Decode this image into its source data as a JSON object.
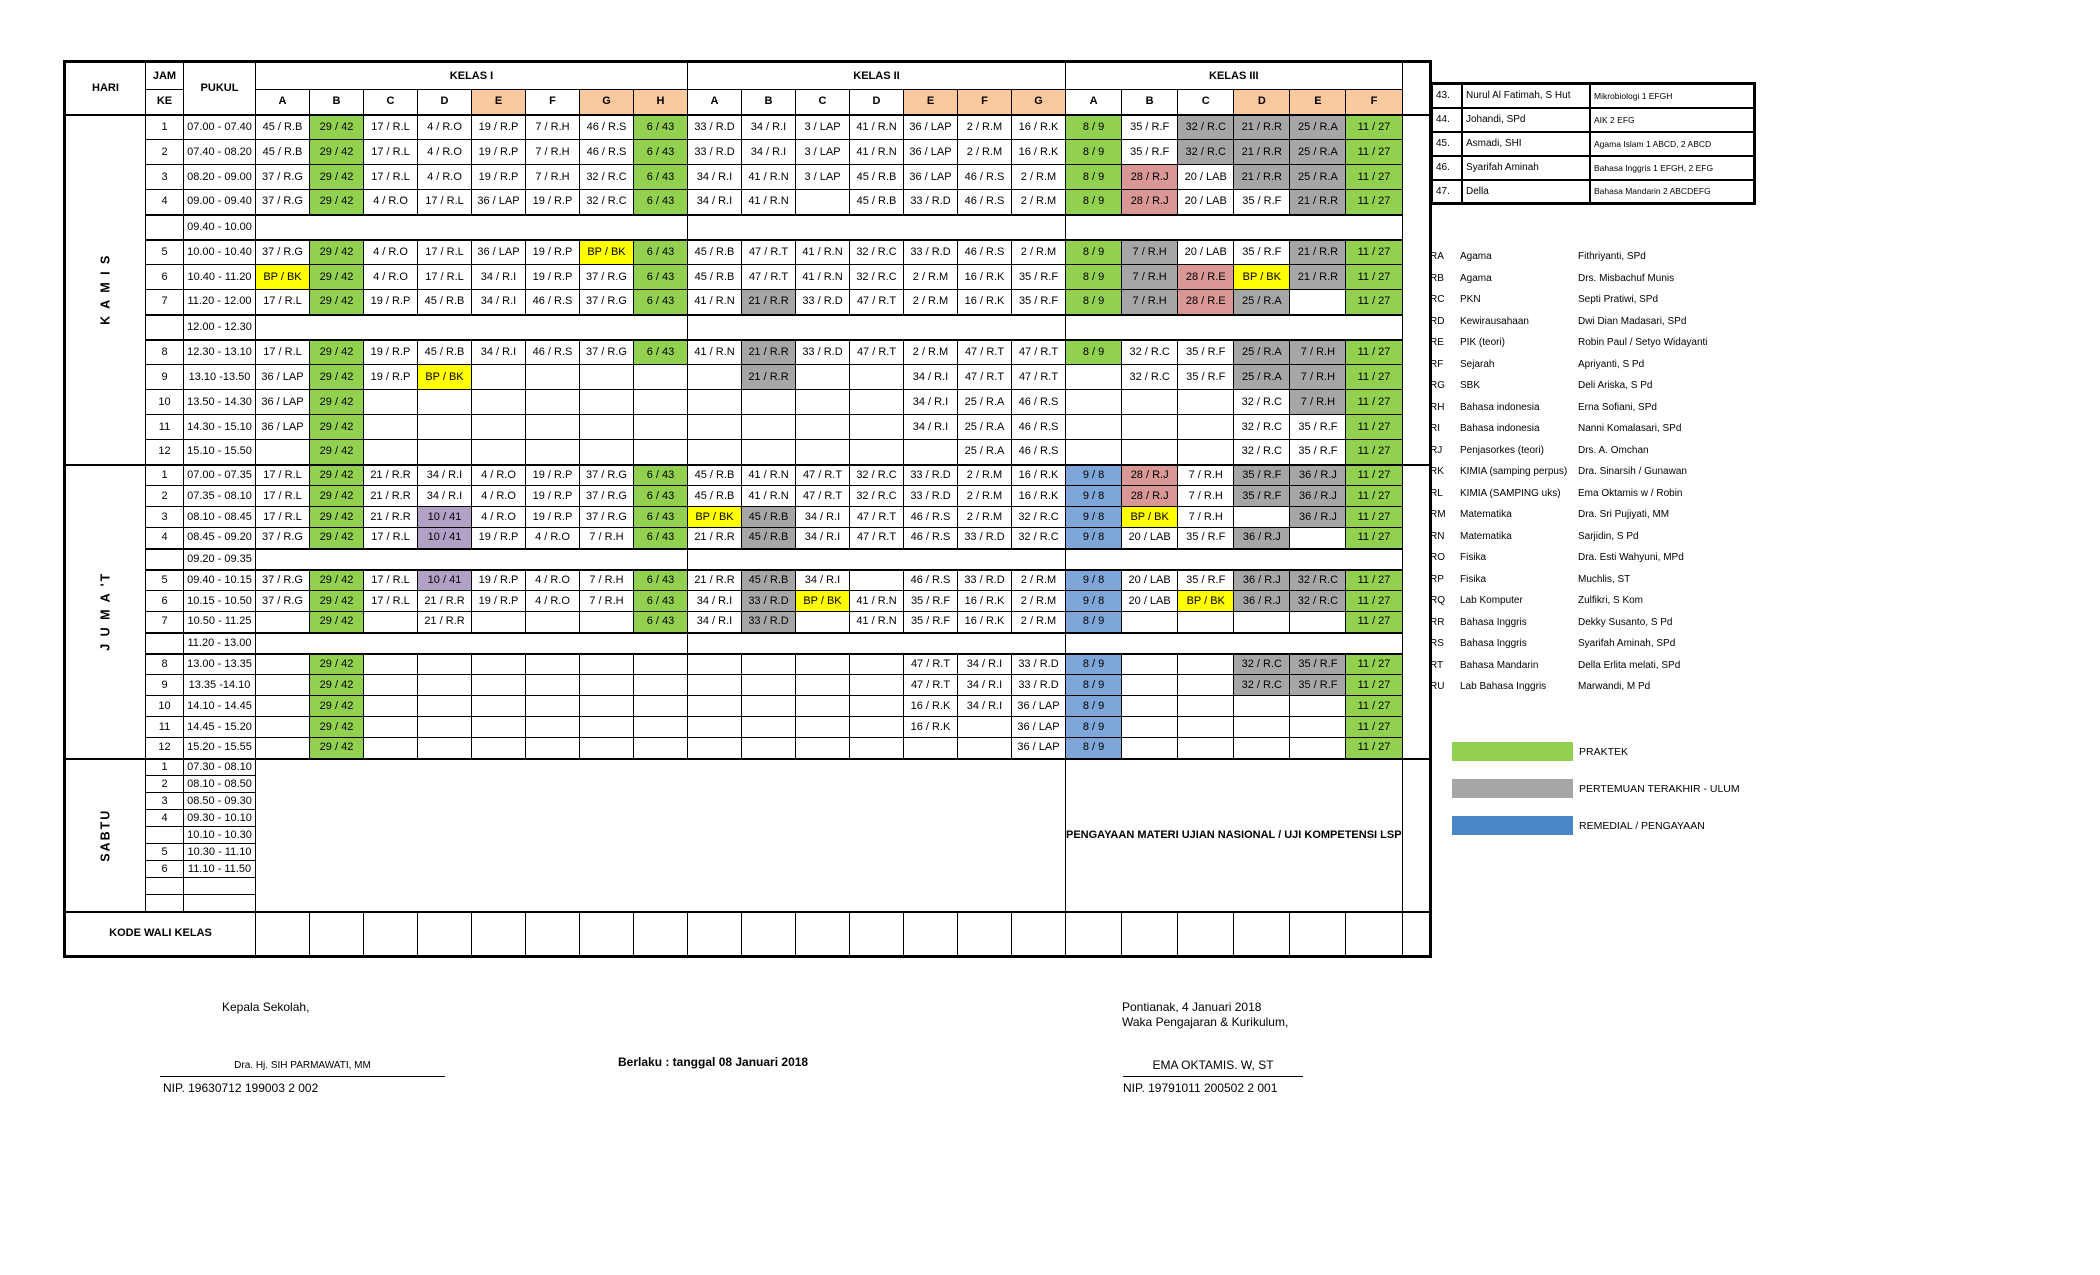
{
  "header": {
    "hari": "HARI",
    "jam": "JAM",
    "ke": "KE",
    "pukul": "PUKUL",
    "groups": [
      {
        "label": "KELAS I",
        "cols": [
          "A",
          "B",
          "C",
          "D",
          "E",
          "F",
          "G",
          "H"
        ],
        "peach": [
          4,
          6,
          7
        ]
      },
      {
        "label": "KELAS II",
        "cols": [
          "A",
          "B",
          "C",
          "D",
          "E",
          "F",
          "G"
        ],
        "peach": [
          4,
          5,
          6
        ]
      },
      {
        "label": "KELAS III",
        "cols": [
          "A",
          "B",
          "C",
          "D",
          "E",
          "F"
        ],
        "peach": [
          3,
          4,
          5
        ]
      }
    ]
  },
  "days": [
    {
      "label": "K A M I S",
      "rows": [
        [
          "1",
          "07.00 - 07.40",
          [
            "45 / R.B",
            "29 / 42|g",
            "17 / R.L",
            "4 / R.O",
            "19 / R.P",
            "7 / R.H",
            "46 / R.S",
            "6 / 43|g",
            "33 / R.D",
            "34 / R.I",
            "3 / LAP",
            "41 / R.N",
            "36 / LAP",
            "2 / R.M",
            "16 / R.K",
            "8 / 9|g",
            "35 / R.F",
            "32 / R.C|gy",
            "21 / R.R|gy",
            "25 / R.A|gy",
            "11 / 27|g"
          ]
        ],
        [
          "2",
          "07.40 - 08.20",
          [
            "45 / R.B",
            "29 / 42|g",
            "17 / R.L",
            "4 / R.O",
            "19 / R.P",
            "7 / R.H",
            "46 / R.S",
            "6 / 43|g",
            "33 / R.D",
            "34 / R.I",
            "3 / LAP",
            "41 / R.N",
            "36 / LAP",
            "2 / R.M",
            "16 / R.K",
            "8 / 9|g",
            "35 / R.F",
            "32 / R.C|gy",
            "21 / R.R|gy",
            "25 / R.A|gy",
            "11 / 27|g"
          ]
        ],
        [
          "3",
          "08.20 - 09.00",
          [
            "37 / R.G",
            "29 / 42|g",
            "17 / R.L",
            "4 / R.O",
            "19 / R.P",
            "7 / R.H",
            "32 / R.C",
            "6 / 43|g",
            "34 / R.I",
            "41 / R.N",
            "3 / LAP",
            "45 / R.B",
            "36 / LAP",
            "46 / R.S",
            "2 / R.M",
            "8 / 9|g",
            "28 / R.J|p",
            "20 / LAB",
            "21 / R.R|gy",
            "25 / R.A|gy",
            "11 / 27|g"
          ]
        ],
        [
          "4",
          "09.00 - 09.40",
          [
            "37 / R.G",
            "29 / 42|g",
            "4 / R.O",
            "17 / R.L",
            "36 / LAP",
            "19 / R.P",
            "32 / R.C",
            "6 / 43|g",
            "34 / R.I",
            "41 / R.N",
            "",
            "45 / R.B",
            "33 / R.D",
            "46 / R.S",
            "2 / R.M",
            "8 / 9|g",
            "28 / R.J|p",
            "20 / LAB",
            "35 / R.F",
            "21 / R.R|gy",
            "11 / 27|g"
          ]
        ],
        [
          "",
          "09.40 - 10.00",
          "BREAK"
        ],
        [
          "5",
          "10.00 - 10.40",
          [
            "37 / R.G",
            "29 / 42|g",
            "4 / R.O",
            "17 / R.L",
            "36 / LAP",
            "19 / R.P",
            "BP / BK|y",
            "6 / 43|g",
            "45 / R.B",
            "47 / R.T",
            "41 / R.N",
            "32 / R.C",
            "33 / R.D",
            "46 / R.S",
            "2 / R.M",
            "8 / 9|g",
            "7 / R.H|gy",
            "20 / LAB",
            "35 / R.F",
            "21 / R.R|gy",
            "11 / 27|g"
          ]
        ],
        [
          "6",
          "10.40 - 11.20",
          [
            "BP / BK|y",
            "29 / 42|g",
            "4 / R.O",
            "17 / R.L",
            "34 / R.I",
            "19 / R.P",
            "37 / R.G",
            "6 / 43|g",
            "45 / R.B",
            "47 / R.T",
            "41 / R.N",
            "32 / R.C",
            "2 / R.M",
            "16 / R.K",
            "35 / R.F",
            "8 / 9|g",
            "7 / R.H|gy",
            "28 / R.E|p",
            "BP / BK|y",
            "21 / R.R|gy",
            "11 / 27|g"
          ]
        ],
        [
          "7",
          "11.20 - 12.00",
          [
            "17 / R.L",
            "29 / 42|g",
            "19 / R.P",
            "45 / R.B",
            "34 / R.I",
            "46 / R.S",
            "37 / R.G",
            "6 / 43|g",
            "41 / R.N",
            "21 / R.R|gy",
            "33 / R.D",
            "47 / R.T",
            "2 / R.M",
            "16 / R.K",
            "35 / R.F",
            "8 / 9|g",
            "7 / R.H|gy",
            "28 / R.E|p",
            "25 / R.A|gy",
            "",
            "11 / 27|g"
          ]
        ],
        [
          "",
          "12.00 - 12.30",
          "BREAK"
        ],
        [
          "8",
          "12.30 - 13.10",
          [
            "17 / R.L",
            "29 / 42|g",
            "19 / R.P",
            "45 / R.B",
            "34 / R.I",
            "46 / R.S",
            "37 / R.G",
            "6 / 43|g",
            "41 / R.N",
            "21 / R.R|gy",
            "33 / R.D",
            "47 / R.T",
            "2 / R.M",
            "47 / R.T",
            "47 / R.T",
            "8 / 9|g",
            "32 / R.C",
            "35 / R.F",
            "25 / R.A|gy",
            "7 / R.H|gy",
            "11 / 27|g"
          ]
        ],
        [
          "9",
          "13.10 -13.50",
          [
            "36 / LAP",
            "29 / 42|g",
            "19 / R.P",
            "BP / BK|y",
            "",
            "",
            "",
            "",
            "",
            "21 / R.R|gy",
            "",
            "",
            "34 / R.I",
            "47 / R.T",
            "47 / R.T",
            "",
            "32 / R.C",
            "35 / R.F",
            "25 / R.A|gy",
            "7 / R.H|gy",
            "11 / 27|g"
          ]
        ],
        [
          "10",
          "13.50 - 14.30",
          [
            "36 / LAP",
            "29 / 42|g",
            "",
            "",
            "",
            "",
            "",
            "",
            "",
            "",
            "",
            "",
            "34 / R.I",
            "25 / R.A",
            "46 / R.S",
            "",
            "",
            "",
            "32 / R.C",
            "7 / R.H|gy",
            "11 / 27|g"
          ]
        ],
        [
          "11",
          "14.30 - 15.10",
          [
            "36 / LAP",
            "29 / 42|g",
            "",
            "",
            "",
            "",
            "",
            "",
            "",
            "",
            "",
            "",
            "34 / R.I",
            "25 / R.A",
            "46 / R.S",
            "",
            "",
            "",
            "32 / R.C",
            "35 / R.F",
            "11 / 27|g"
          ]
        ],
        [
          "12",
          "15.10 - 15.50",
          [
            "",
            "29 / 42|g",
            "",
            "",
            "",
            "",
            "",
            "",
            "",
            "",
            "",
            "",
            "",
            "25 / R.A",
            "46 / R.S",
            "",
            "",
            "",
            "32 / R.C",
            "35 / R.F",
            "11 / 27|g"
          ]
        ]
      ]
    },
    {
      "label": "J U M A 'T",
      "rows": [
        [
          "1",
          "07.00 - 07.35",
          [
            "17 / R.L",
            "29 / 42|g",
            "21 / R.R",
            "34 / R.I",
            "4 / R.O",
            "19 / R.P",
            "37 / R.G",
            "6 / 43|g",
            "45 / R.B",
            "41 / R.N",
            "47 / R.T",
            "32 / R.C",
            "33 / R.D",
            "2 / R.M",
            "16 / R.K",
            "9 / 8|b",
            "28 / R.J|p",
            "7 / R.H",
            "35 / R.F|gy",
            "36 / R.J|gy",
            "11 / 27|g"
          ]
        ],
        [
          "2",
          "07.35 - 08.10",
          [
            "17 / R.L",
            "29 / 42|g",
            "21 / R.R",
            "34 / R.I",
            "4 / R.O",
            "19 / R.P",
            "37 / R.G",
            "6 / 43|g",
            "45 / R.B",
            "41 / R.N",
            "47 / R.T",
            "32 / R.C",
            "33 / R.D",
            "2 / R.M",
            "16 / R.K",
            "9 / 8|b",
            "28 / R.J|p",
            "7 / R.H",
            "35 / R.F|gy",
            "36 / R.J|gy",
            "11 / 27|g"
          ]
        ],
        [
          "3",
          "08.10 - 08.45",
          [
            "17 / R.L",
            "29 / 42|g",
            "21 / R.R",
            "10 / 41|pu",
            "4 / R.O",
            "19 / R.P",
            "37 / R.G",
            "6 / 43|g",
            "BP / BK|y",
            "45 / R.B|gy",
            "34 / R.I",
            "47 / R.T",
            "46 / R.S",
            "2 / R.M",
            "32 / R.C",
            "9 / 8|b",
            "BP / BK|y",
            "7 / R.H",
            "",
            "36 / R.J|gy",
            "11 / 27|g"
          ]
        ],
        [
          "4",
          "08.45 - 09.20",
          [
            "37 / R.G",
            "29 / 42|g",
            "17 / R.L",
            "10 / 41|pu",
            "19 / R.P",
            "4 / R.O",
            "7 / R.H",
            "6 / 43|g",
            "21 / R.R",
            "45 / R.B|gy",
            "34 / R.I",
            "47 / R.T",
            "46 / R.S",
            "33 / R.D",
            "32 / R.C",
            "9 / 8|b",
            "20 / LAB",
            "35 / R.F",
            "36 / R.J|gy",
            "",
            "11 / 27|g"
          ]
        ],
        [
          "",
          "09.20 - 09.35",
          "BREAK"
        ],
        [
          "5",
          "09.40 - 10.15",
          [
            "37 / R.G",
            "29 / 42|g",
            "17 / R.L",
            "10 / 41|pu",
            "19 / R.P",
            "4 / R.O",
            "7 / R.H",
            "6 / 43|g",
            "21 / R.R",
            "45 / R.B|gy",
            "34 / R.I",
            "",
            "46 / R.S",
            "33 / R.D",
            "2 / R.M",
            "9 / 8|b",
            "20 / LAB",
            "35 / R.F",
            "36 / R.J|gy",
            "32 / R.C|gy",
            "11 / 27|g"
          ]
        ],
        [
          "6",
          "10.15 - 10.50",
          [
            "37 / R.G",
            "29 / 42|g",
            "17 / R.L",
            "21 / R.R",
            "19 / R.P",
            "4 / R.O",
            "7 / R.H",
            "6 / 43|g",
            "34 / R.I",
            "33 / R.D|gy",
            "BP / BK|y",
            "41 / R.N",
            "35 / R.F",
            "16 / R.K",
            "2 / R.M",
            "9 / 8|b",
            "20 / LAB",
            "BP / BK|y",
            "36 / R.J|gy",
            "32 / R.C|gy",
            "11 / 27|g"
          ]
        ],
        [
          "7",
          "10.50 - 11.25",
          [
            "",
            "29 / 42|g",
            "",
            "21 / R.R",
            "",
            "",
            "",
            "6 / 43|g",
            "34 / R.I",
            "33 / R.D|gy",
            "",
            "41 / R.N",
            "35 / R.F",
            "16 / R.K",
            "2 / R.M",
            "8 / 9|b",
            "",
            "",
            "",
            "",
            "11 / 27|g"
          ]
        ],
        [
          "",
          "11.20 - 13.00",
          "BREAK"
        ],
        [
          "8",
          "13.00 - 13.35",
          [
            "",
            "29 / 42|g",
            "",
            "",
            "",
            "",
            "",
            "",
            "",
            "",
            "",
            "",
            "47 / R.T",
            "34 / R.I",
            "33 / R.D",
            "8 / 9|b",
            "",
            "",
            "32 / R.C|gy",
            "35 / R.F|gy",
            "11 / 27|g"
          ]
        ],
        [
          "9",
          "13.35 -14.10",
          [
            "",
            "29 / 42|g",
            "",
            "",
            "",
            "",
            "",
            "",
            "",
            "",
            "",
            "",
            "47 / R.T",
            "34 / R.I",
            "33 / R.D",
            "8 / 9|b",
            "",
            "",
            "32 / R.C|gy",
            "35 / R.F|gy",
            "11 / 27|g"
          ]
        ],
        [
          "10",
          "14.10 - 14.45",
          [
            "",
            "29 / 42|g",
            "",
            "",
            "",
            "",
            "",
            "",
            "",
            "",
            "",
            "",
            "16 / R.K",
            "34 / R.I",
            "36 / LAP",
            "8 / 9|b",
            "",
            "",
            "",
            "",
            "11 / 27|g"
          ]
        ],
        [
          "11",
          "14.45 - 15.20",
          [
            "",
            "29 / 42|g",
            "",
            "",
            "",
            "",
            "",
            "",
            "",
            "",
            "",
            "",
            "16 / R.K",
            "",
            "36 / LAP",
            "8 / 9|b",
            "",
            "",
            "",
            "",
            "11 / 27|g"
          ]
        ],
        [
          "12",
          "15.20 - 15.55",
          [
            "",
            "29 / 42|g",
            "",
            "",
            "",
            "",
            "",
            "",
            "",
            "",
            "",
            "",
            "",
            "",
            "36 / LAP",
            "8 / 9|b",
            "",
            "",
            "",
            "",
            "11 / 27|g"
          ]
        ]
      ]
    },
    {
      "label": "SABTU",
      "note": "PENGAYAAN MATERI UJIAN NASIONAL / UJI KOMPETENSI LSP",
      "rows": [
        [
          "1",
          "07.30 - 08.10"
        ],
        [
          "2",
          "08.10 - 08.50"
        ],
        [
          "3",
          "08.50 - 09.30"
        ],
        [
          "4",
          "09.30 - 10.10"
        ],
        [
          "",
          "10.10 - 10.30"
        ],
        [
          "5",
          "10.30 - 11.10"
        ],
        [
          "6",
          "11.10 - 11.50"
        ],
        [
          "",
          ""
        ],
        [
          "",
          ""
        ]
      ]
    }
  ],
  "kode_wali_kelas": "KODE WALI KELAS",
  "teachers": [
    {
      "no": "43.",
      "name": "Nurul Al Fatimah, S Hut",
      "subject": "Mikrobiologi 1 EFGH"
    },
    {
      "no": "44.",
      "name": "Johandi, SPd",
      "subject": "AIK 2 EFG"
    },
    {
      "no": "45.",
      "name": "Asmadi, SHI",
      "subject": "Agama Islam 1 ABCD, 2 ABCD"
    },
    {
      "no": "46.",
      "name": "Syarifah Aminah",
      "subject": "Bahasa Inggris 1 EFGH, 2 EFG"
    },
    {
      "no": "47.",
      "name": "Della",
      "subject": "Bahasa Mandarin 2 ABCDEFG"
    }
  ],
  "codes": [
    {
      "code": "RA",
      "subject": "Agama",
      "teacher": "Fithriyanti, SPd"
    },
    {
      "code": "RB",
      "subject": "Agama",
      "teacher": "Drs. Misbachuf Munis"
    },
    {
      "code": "RC",
      "subject": "PKN",
      "teacher": "Septi Pratiwi, SPd"
    },
    {
      "code": "RD",
      "subject": "Kewirausahaan",
      "teacher": "Dwi Dian Madasari, SPd"
    },
    {
      "code": "RE",
      "subject": "PIK (teori)",
      "teacher": "Robin Paul / Setyo Widayanti"
    },
    {
      "code": "RF",
      "subject": "Sejarah",
      "teacher": "Apriyanti, S Pd"
    },
    {
      "code": "RG",
      "subject": "SBK",
      "teacher": "Deli Ariska, S Pd"
    },
    {
      "code": "RH",
      "subject": "Bahasa indonesia",
      "teacher": "Erna Sofiani, SPd"
    },
    {
      "code": "RI",
      "subject": "Bahasa indonesia",
      "teacher": "Nanni Komalasari, SPd"
    },
    {
      "code": "RJ",
      "subject": "Penjasorkes (teori)",
      "teacher": "Drs. A. Omchan"
    },
    {
      "code": "RK",
      "subject": "KIMIA  (samping perpus)",
      "teacher": "Dra. Sinarsih / Gunawan"
    },
    {
      "code": "RL",
      "subject": "KIMIA (SAMPING uks)",
      "teacher": "Ema Oktamis w / Robin"
    },
    {
      "code": "RM",
      "subject": "Matematika",
      "teacher": "Dra. Sri Pujiyati, MM"
    },
    {
      "code": "RN",
      "subject": "Matematika",
      "teacher": "Sarjidin, S Pd"
    },
    {
      "code": "RO",
      "subject": "Fisika",
      "teacher": "Dra. Esti Wahyuni, MPd"
    },
    {
      "code": "RP",
      "subject": "Fisika",
      "teacher": "Muchlis, ST"
    },
    {
      "code": "RQ",
      "subject": "Lab Komputer",
      "teacher": "Zulfikri, S Kom"
    },
    {
      "code": "RR",
      "subject": "Bahasa Inggris",
      "teacher": "Dekky Susanto, S Pd"
    },
    {
      "code": "RS",
      "subject": "Bahasa Inggris",
      "teacher": "Syarifah Aminah, SPd"
    },
    {
      "code": "RT",
      "subject": "Bahasa Mandarin",
      "teacher": "Della Erlita melati, SPd"
    },
    {
      "code": "RU",
      "subject": "Lab Bahasa Inggris",
      "teacher": "Marwandi, M Pd"
    }
  ],
  "legend": [
    {
      "label": "PRAKTEK",
      "color": "#92D050"
    },
    {
      "label": "PERTEMUAN TERAKHIR  - ULUM",
      "color": "#A6A6A6"
    },
    {
      "label": "REMEDIAL / PENGAYAAN",
      "color": "#4A86C8"
    }
  ],
  "colors": {
    "praktek_green": "#92D050",
    "ulum_gray": "#A6A6A6",
    "remedial_blue_legend": "#4A86C8",
    "remedial_blue_cell": "#7EA6D9",
    "bp_bk_yellow": "#FFFF00",
    "penjasorkes_pink": "#D99795",
    "cell_purple": "#B2A1C7",
    "header_peach": "#FAC99E"
  },
  "footer": {
    "kepala_sekolah": "Kepala Sekolah,",
    "kepala_name": "Dra. Hj. SIH PARMAWATI, MM",
    "kepala_nip": "NIP. 19630712 199003 2 002",
    "berlaku": "Berlaku : tanggal 08 Januari 2018",
    "tempat_tanggal": "Pontianak, 4 Januari 2018",
    "waka": "Waka Pengajaran & Kurikulum,",
    "waka_name": "EMA OKTAMIS. W, ST",
    "waka_nip": "NIP. 19791011 200502 2 001"
  }
}
